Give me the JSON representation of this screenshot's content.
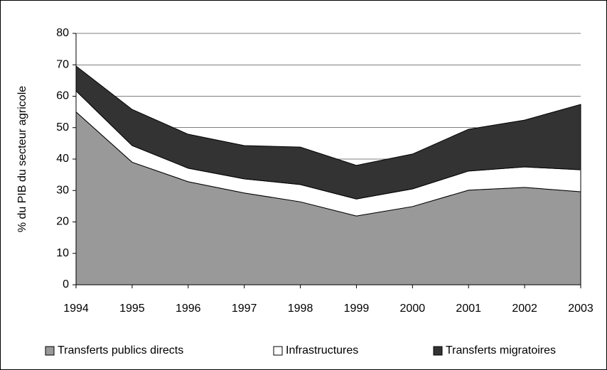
{
  "chart_data": {
    "type": "stacked_area",
    "y_label": "% du PIB du secteur agricole",
    "categories": [
      "1994",
      "1995",
      "1996",
      "1997",
      "1998",
      "1999",
      "2000",
      "2001",
      "2002",
      "2003"
    ],
    "series": [
      {
        "name": "Transferts publics directs",
        "color": "#999999",
        "values": [
          55,
          39,
          32.8,
          29.2,
          26.4,
          21.9,
          24.9,
          30.1,
          31,
          29.6
        ]
      },
      {
        "name": "Infrastructures",
        "color": "#ffffff",
        "values": [
          6.7,
          5.3,
          4.3,
          4.5,
          5.5,
          5.4,
          5.6,
          6.1,
          6.5,
          7
        ]
      },
      {
        "name": "Transferts migratoires",
        "color": "#333333",
        "values": [
          7.9,
          11.5,
          10.8,
          10.6,
          11.9,
          10.7,
          11.1,
          13.3,
          14.9,
          20.8
        ]
      }
    ],
    "ylim": [
      0,
      80
    ],
    "yticks": [
      0,
      10,
      20,
      30,
      40,
      50,
      60,
      70,
      80
    ],
    "grid": true,
    "legend": "bottom"
  }
}
